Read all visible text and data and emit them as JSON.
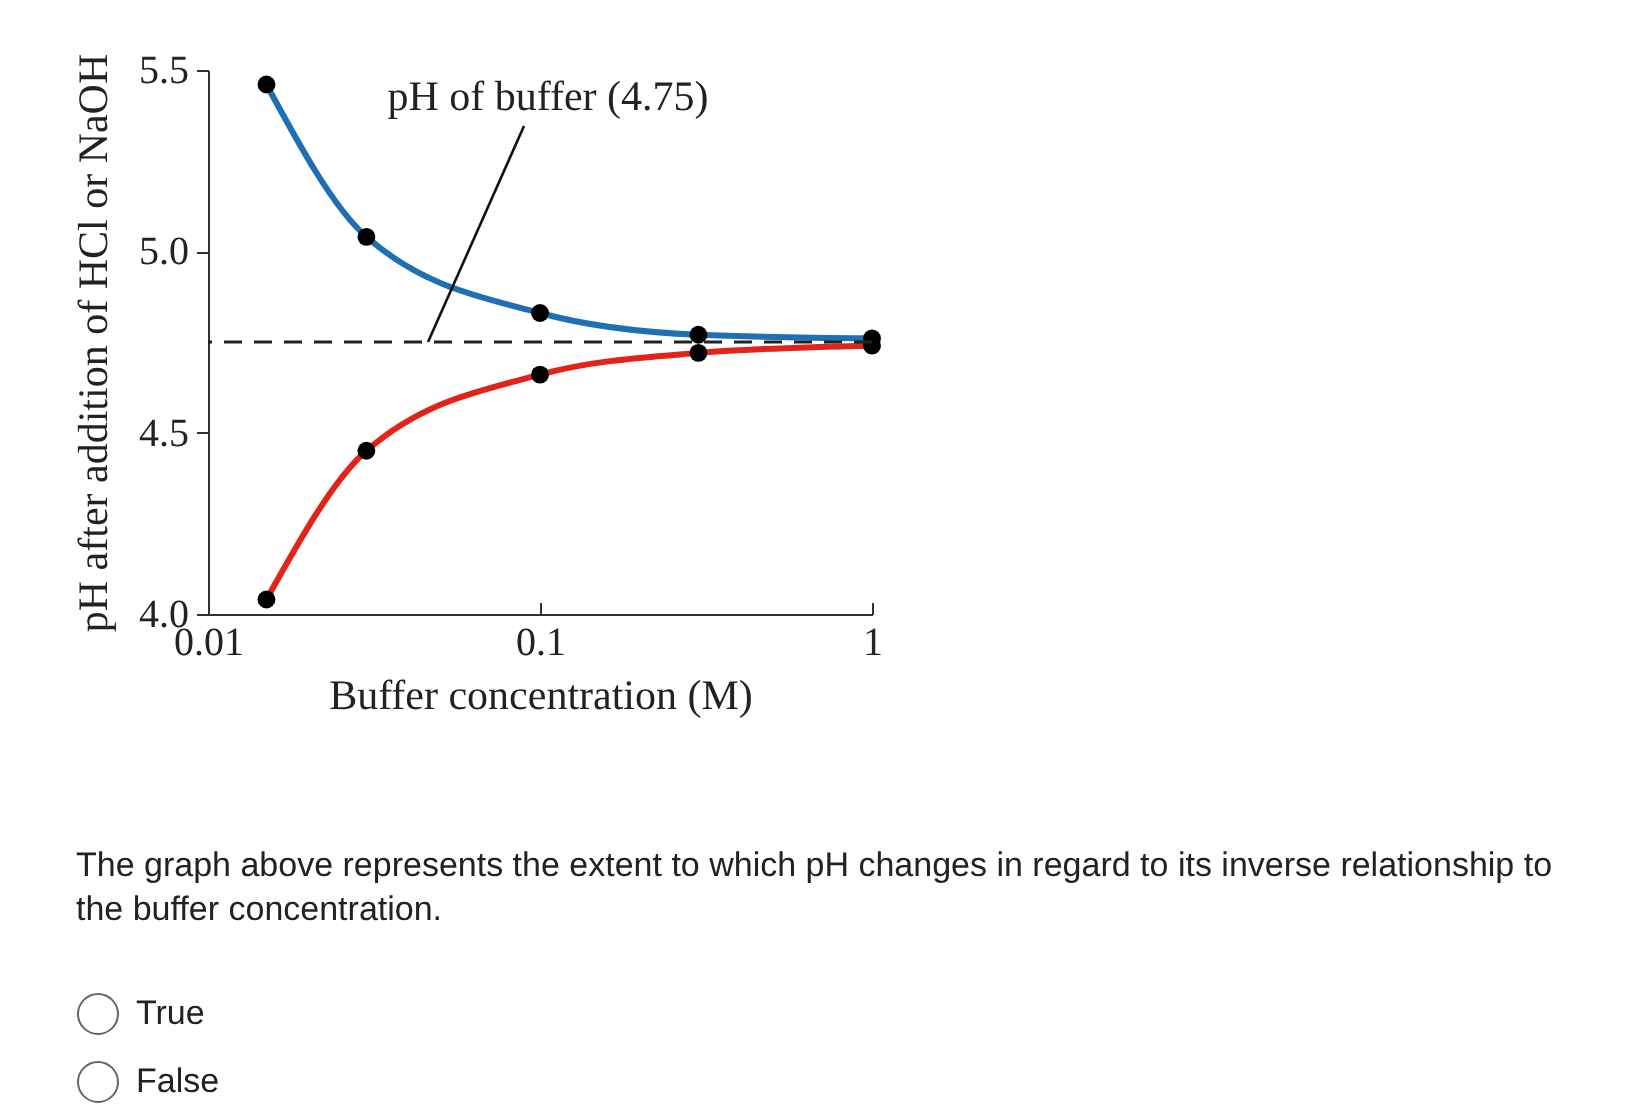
{
  "chart_data": {
    "type": "line",
    "xlabel": "Buffer concentration (M)",
    "ylabel": "pH after addition of HCl or NaOH",
    "log": "x",
    "x": [
      0.015,
      0.03,
      0.1,
      0.3,
      1
    ],
    "series": [
      {
        "color": "#1f6fb4",
        "values": [
          5.46,
          5.04,
          4.83,
          4.77,
          4.76
        ]
      },
      {
        "color": "#e2231a",
        "values": [
          4.04,
          4.45,
          4.66,
          4.72,
          4.74
        ]
      }
    ],
    "xlim": [
      0.01,
      1
    ],
    "xticks": [
      0.01,
      0.1,
      1
    ],
    "ylim": [
      4.0,
      5.5
    ],
    "yticks": [
      {
        "value": 4,
        "label": "4.0"
      },
      {
        "value": 4.5,
        "label": "4.5"
      },
      {
        "value": 5,
        "label": "5.0"
      },
      {
        "value": 5.5,
        "label": "5.5"
      }
    ],
    "marker": "circle",
    "grid": false,
    "ref_lines": [
      {
        "axis": "y",
        "value": 4.75,
        "line_style": "dashed",
        "label": "pH of buffer (4.75)"
      }
    ],
    "annotations": [
      "The graph above represents the extent to which pH changes in regard to its inverse relationship to the buffer concentration.",
      "True",
      "False"
    ]
  }
}
